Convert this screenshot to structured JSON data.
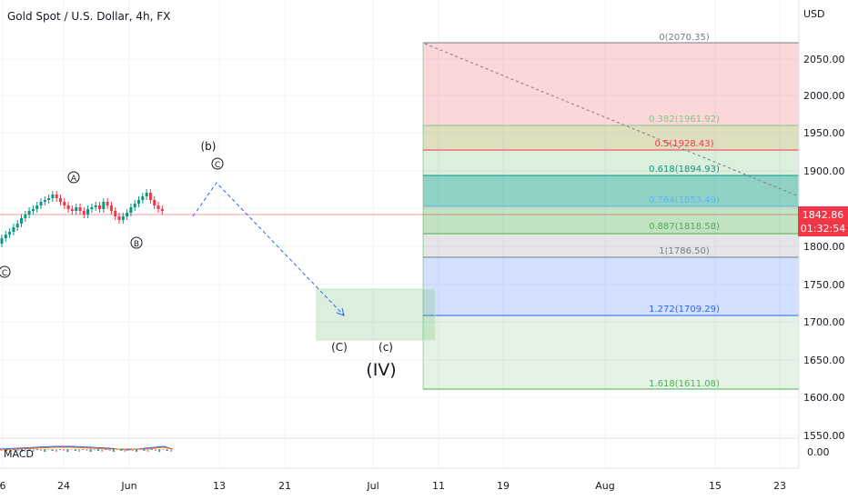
{
  "title": "Gold Spot / U.S. Dollar, 4h, FX",
  "currency": "USD",
  "y_axis_labels": [
    "2050.00",
    "2000.00",
    "1950.00",
    "1900.00",
    "1800.00",
    "1750.00",
    "1700.00",
    "1650.00",
    "1600.00",
    "1550.00"
  ],
  "x_axis_labels": [
    "6",
    "24",
    "Jun",
    "13",
    "21",
    "Jul",
    "11",
    "19",
    "Aug",
    "15",
    "23"
  ],
  "current_price": "1842.86",
  "countdown": "01:32:54",
  "fib_levels": [
    {
      "label": "0(2070.35)",
      "price": 2070.35,
      "color": "#787b86"
    },
    {
      "label": "0.382(1961.92)",
      "price": 1961.92,
      "color": "#81c784"
    },
    {
      "label": "0.5(1928.43)",
      "price": 1928.43,
      "color": "#f23645"
    },
    {
      "label": "0.618(1894.93)",
      "price": 1894.93,
      "color": "#089981"
    },
    {
      "label": "0.764(1853.49)",
      "price": 1853.49,
      "color": "#64b5f6"
    },
    {
      "label": "0.887(1818.58)",
      "price": 1818.58,
      "color": "#4caf50"
    },
    {
      "label": "1(1786.50)",
      "price": 1786.5,
      "color": "#787b86"
    },
    {
      "label": "1.272(1709.29)",
      "price": 1709.29,
      "color": "#2962ff"
    },
    {
      "label": "1.618(1611.08)",
      "price": 1611.08,
      "color": "#4caf50"
    }
  ],
  "wave_labels": {
    "c_circled_left": "C",
    "a_circled": "A",
    "b_circled": "B",
    "b_paren": "(b)",
    "c_circled_top": "C",
    "C_paren": "(C)",
    "c_paren": "(c)",
    "IV_paren": "(IV)"
  },
  "macd_label": "MACD",
  "macd_value": "0.00",
  "colors": {
    "up": "#089981",
    "down": "#f23645",
    "price_line": "#f23645",
    "projection": "#2962ff"
  }
}
